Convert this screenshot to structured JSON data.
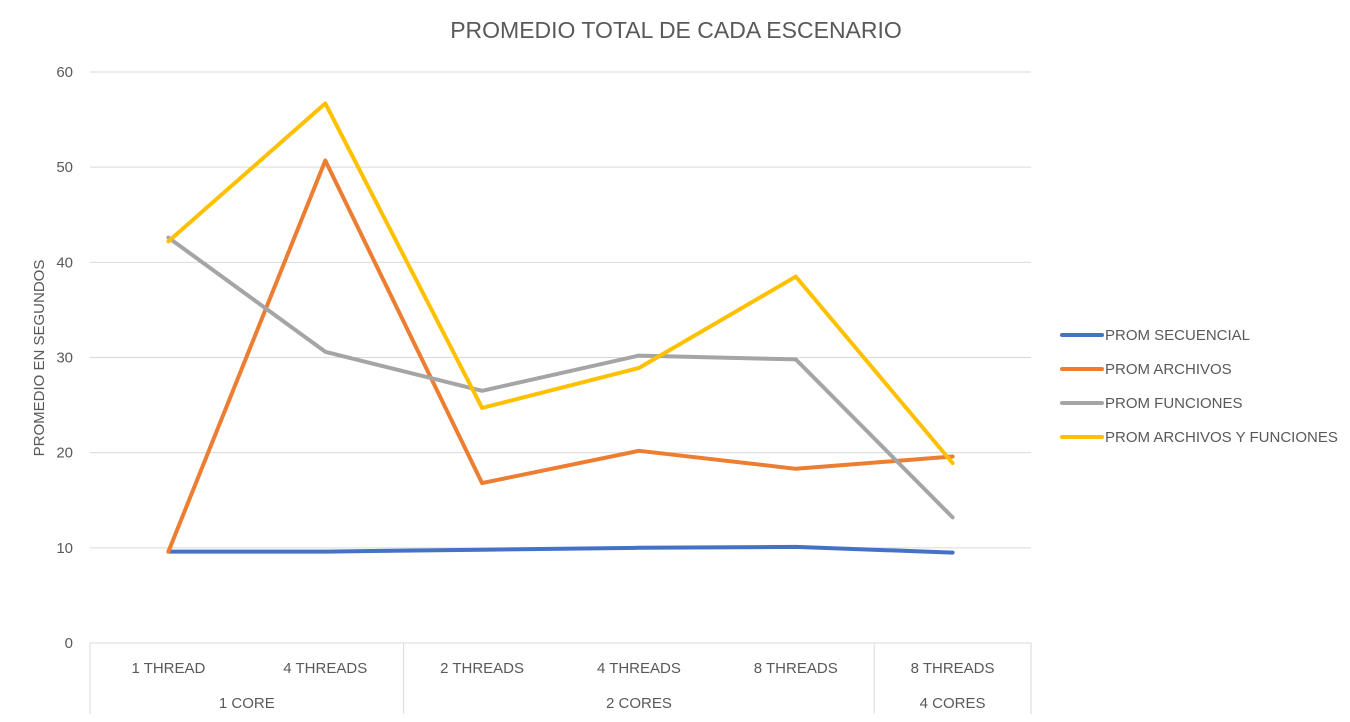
{
  "chart_data": {
    "type": "line",
    "title": "PROMEDIO TOTAL DE CADA ESCENARIO",
    "ylabel": "PROMEDIO EN SEGUNDOS",
    "xlabel": "",
    "ylim": [
      0,
      60
    ],
    "yticks": [
      0,
      10,
      20,
      30,
      40,
      50,
      60
    ],
    "grid": true,
    "legend_position": "right",
    "categories": [
      "1 THREAD",
      "4 THREADS",
      "2 THREADS",
      "4 THREADS",
      "8 THREADS",
      "8 THREADS"
    ],
    "groups": [
      {
        "label": "1 CORE",
        "count": 2
      },
      {
        "label": "2 CORES",
        "count": 3
      },
      {
        "label": "4 CORES",
        "count": 1
      }
    ],
    "series": [
      {
        "name": "PROM SECUENCIAL",
        "color": "#4472C4",
        "values": [
          9.6,
          9.6,
          9.8,
          10.0,
          10.1,
          9.5
        ]
      },
      {
        "name": "PROM ARCHIVOS",
        "color": "#ED7D31",
        "values": [
          9.6,
          50.7,
          16.8,
          20.2,
          18.3,
          19.6
        ]
      },
      {
        "name": "PROM FUNCIONES",
        "color": "#A5A5A5",
        "values": [
          42.6,
          30.6,
          26.5,
          30.2,
          29.8,
          13.2
        ]
      },
      {
        "name": "PROM ARCHIVOS Y FUNCIONES",
        "color": "#FFC000",
        "values": [
          42.2,
          56.7,
          24.7,
          28.9,
          38.5,
          18.9
        ]
      }
    ]
  }
}
